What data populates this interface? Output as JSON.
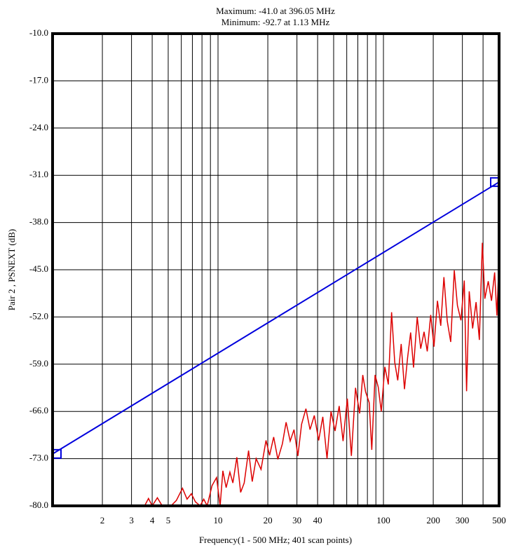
{
  "chart_data": {
    "type": "line",
    "title": "Maximum: -41.0 at 396.05 MHz",
    "subtitle": "Minimum: -92.7 at 1.13 MHz",
    "x_label": "Frequency(1 - 500 MHz; 401 scan points)",
    "y_label": "Pair 2 , PSNEXT (dB)",
    "xscale": "log",
    "xlim": [
      1,
      500
    ],
    "ylim": [
      -80,
      -10
    ],
    "xticks": [
      2,
      3,
      4,
      5,
      10,
      20,
      30,
      40,
      100,
      200,
      300,
      500
    ],
    "xgrid_minor": [
      6,
      7,
      8,
      9,
      50,
      60,
      70,
      80,
      90,
      400
    ],
    "yticks": [
      {
        "value": -10,
        "label": "-10.0"
      },
      {
        "value": -17,
        "label": "-17.0"
      },
      {
        "value": -24,
        "label": "-24.0"
      },
      {
        "value": -31,
        "label": "-31.0"
      },
      {
        "value": -38,
        "label": "-38.0"
      },
      {
        "value": -45,
        "label": "-45.0"
      },
      {
        "value": -52,
        "label": "-52.0"
      },
      {
        "value": -59,
        "label": "-59.0"
      },
      {
        "value": -66,
        "label": "-66.0"
      },
      {
        "value": -73,
        "label": "-73.0"
      },
      {
        "value": -80,
        "label": "-80.0"
      }
    ],
    "grid": true,
    "series": [
      {
        "color": "#0000dd",
        "end_markers": true,
        "x": [
          1,
          500
        ],
        "values": [
          -72.3,
          -32.0
        ]
      },
      {
        "color": "#dd0000",
        "end_markers": false,
        "x": [
          1,
          3.6,
          3.8,
          4.0,
          4.3,
          4.6,
          5.2,
          5.6,
          6.1,
          6.5,
          6.9,
          7.3,
          7.8,
          8.2,
          8.6,
          9.2,
          9.8,
          10.3,
          10.7,
          11.2,
          11.8,
          12.3,
          13.0,
          13.7,
          14.4,
          15.3,
          16.1,
          17.0,
          18.2,
          19.5,
          20.5,
          21.7,
          23.0,
          24.5,
          25.8,
          27.3,
          28.8,
          30.4,
          32.0,
          34.0,
          36.0,
          38.2,
          40.6,
          43.0,
          45.6,
          48.2,
          51.0,
          54.0,
          57.0,
          60.5,
          64.0,
          67.8,
          71.8,
          75.0,
          78.0,
          82.0,
          85.0,
          89.0,
          93.0,
          97.0,
          102.0,
          107.0,
          112.0,
          117.0,
          122.0,
          128.0,
          134.0,
          140.0,
          146.0,
          152.0,
          160.0,
          168.0,
          176.0,
          184.0,
          193.0,
          202.0,
          212.0,
          222.0,
          232.0,
          243.0,
          255.0,
          268.0,
          280.0,
          294.0,
          308.0,
          318.0,
          330.0,
          346.0,
          363.0,
          380.0,
          396.05,
          410.0,
          430.0,
          450.0,
          470.0,
          485.0,
          500.0
        ],
        "values": [
          -80,
          -80,
          -78.9,
          -80,
          -78.8,
          -80,
          -80,
          -79.2,
          -77.4,
          -79.0,
          -78.2,
          -79.4,
          -80,
          -79.0,
          -80,
          -77.0,
          -75.8,
          -80,
          -74.8,
          -77.3,
          -75.0,
          -76.6,
          -72.8,
          -78.0,
          -76.6,
          -71.8,
          -76.4,
          -73.0,
          -74.6,
          -70.3,
          -72.5,
          -69.8,
          -73.1,
          -70.8,
          -67.6,
          -70.4,
          -68.7,
          -72.6,
          -67.9,
          -65.6,
          -68.7,
          -66.6,
          -70.3,
          -66.8,
          -73.0,
          -66.0,
          -68.9,
          -65.2,
          -70.4,
          -64.1,
          -72.6,
          -62.5,
          -66.3,
          -60.6,
          -63.1,
          -64.7,
          -71.7,
          -60.6,
          -62.4,
          -66.0,
          -59.4,
          -62.0,
          -51.3,
          -58.7,
          -61.4,
          -56.0,
          -62.7,
          -58.0,
          -54.3,
          -59.5,
          -52.0,
          -56.7,
          -54.2,
          -57.1,
          -51.7,
          -56.4,
          -49.6,
          -53.3,
          -46.1,
          -52.6,
          -55.7,
          -45.1,
          -50.3,
          -52.5,
          -46.6,
          -63.0,
          -48.2,
          -53.7,
          -49.8,
          -55.4,
          -41.0,
          -49.3,
          -46.7,
          -49.6,
          -45.4,
          -51.8,
          -43.3
        ]
      }
    ]
  }
}
